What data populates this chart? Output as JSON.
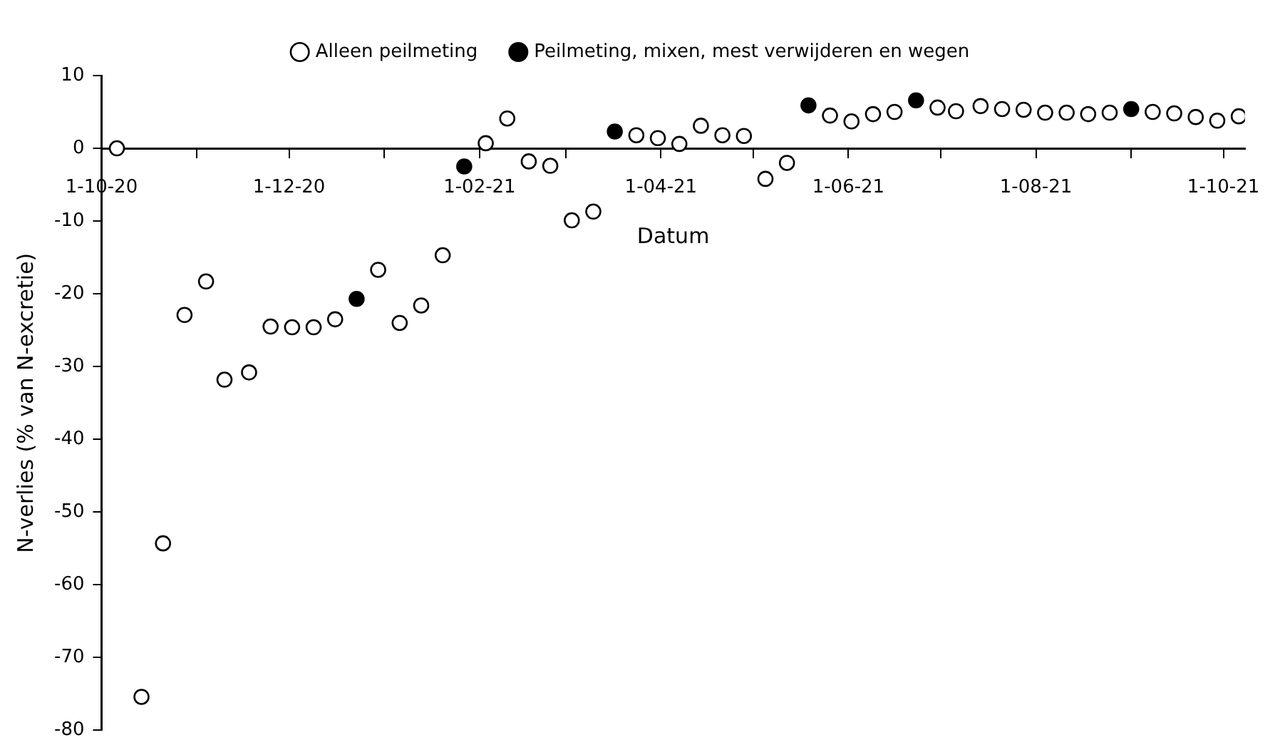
{
  "chart_data": {
    "type": "scatter",
    "xlabel": "Datum",
    "ylabel": "N-verlies (% van N-excretie)",
    "xlim": [
      "2020-10-01",
      "2021-10-08"
    ],
    "xticks": [
      {
        "value": "2020-10-01",
        "label": "1-10-20"
      },
      {
        "value": "2020-11-01",
        "label": null
      },
      {
        "value": "2020-12-01",
        "label": "1-12-20"
      },
      {
        "value": "2021-01-01",
        "label": null
      },
      {
        "value": "2021-02-01",
        "label": "1-02-21"
      },
      {
        "value": "2021-03-01",
        "label": null
      },
      {
        "value": "2021-04-01",
        "label": "1-04-21"
      },
      {
        "value": "2021-05-01",
        "label": null
      },
      {
        "value": "2021-06-01",
        "label": "1-06-21"
      },
      {
        "value": "2021-07-01",
        "label": null
      },
      {
        "value": "2021-08-01",
        "label": "1-08-21"
      },
      {
        "value": "2021-09-01",
        "label": null
      },
      {
        "value": "2021-10-01",
        "label": "1-10-21"
      }
    ],
    "ylim": [
      -80,
      10
    ],
    "yticks": [
      10,
      0,
      -10,
      -20,
      -30,
      -40,
      -50,
      -60,
      -70,
      -80
    ],
    "grid": false,
    "legend": "top",
    "marker": "circle",
    "series": [
      {
        "name": "Alleen peilmeting",
        "color": "#ffffff",
        "x": [
          "2020-10-06",
          "2020-10-14",
          "2020-10-21",
          "2020-10-28",
          "2020-11-04",
          "2020-11-10",
          "2020-11-18",
          "2020-11-25",
          "2020-12-02",
          "2020-12-09",
          "2020-12-16",
          "2020-12-30",
          "2021-01-06",
          "2021-01-13",
          "2021-01-20",
          "2021-02-03",
          "2021-02-10",
          "2021-02-17",
          "2021-02-24",
          "2021-03-03",
          "2021-03-10",
          "2021-03-24",
          "2021-03-31",
          "2021-04-07",
          "2021-04-14",
          "2021-04-21",
          "2021-04-28",
          "2021-05-05",
          "2021-05-12",
          "2021-05-26",
          "2021-06-02",
          "2021-06-09",
          "2021-06-16",
          "2021-06-30",
          "2021-07-06",
          "2021-07-14",
          "2021-07-21",
          "2021-07-28",
          "2021-08-04",
          "2021-08-11",
          "2021-08-18",
          "2021-08-25",
          "2021-09-08",
          "2021-09-15",
          "2021-09-22",
          "2021-09-29",
          "2021-10-06"
        ],
        "values": [
          0,
          -75.4,
          -54.3,
          -22.9,
          -18.3,
          -31.8,
          -30.8,
          -24.5,
          -24.6,
          -24.6,
          -23.5,
          -16.7,
          -24,
          -21.6,
          -14.7,
          0.7,
          4.1,
          -1.8,
          -2.4,
          -9.9,
          -8.7,
          1.8,
          1.4,
          0.6,
          3.1,
          1.8,
          1.7,
          -4.2,
          -2,
          4.5,
          3.7,
          4.7,
          5,
          5.6,
          5.1,
          5.8,
          5.4,
          5.3,
          4.9,
          4.9,
          4.7,
          4.9,
          5,
          4.8,
          4.3,
          3.8,
          4.4
        ]
      },
      {
        "name": "Peilmeting, mixen, mest verwijderen en wegen",
        "color": "#000000",
        "x": [
          "2020-12-23",
          "2021-01-27",
          "2021-03-17",
          "2021-05-19",
          "2021-06-23",
          "2021-09-01"
        ],
        "values": [
          -20.7,
          -2.5,
          2.3,
          5.9,
          6.6,
          5.4
        ]
      }
    ]
  }
}
